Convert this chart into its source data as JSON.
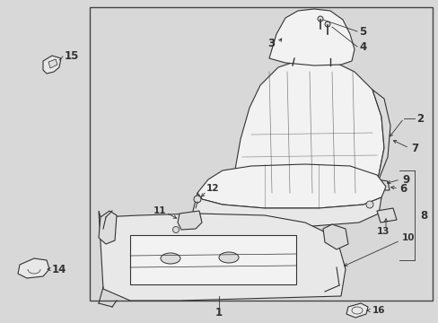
{
  "bg_color": "#d8d8d8",
  "box_bg": "#d8d8d8",
  "border_color": "#444444",
  "line_color": "#333333",
  "part_fill": "#f2f2f2",
  "part_fill2": "#e8e8e8",
  "part_fill3": "#dcdcdc",
  "font_size": 8.5,
  "font_size_sm": 7.5,
  "lw": 0.8,
  "lw_thin": 0.5
}
